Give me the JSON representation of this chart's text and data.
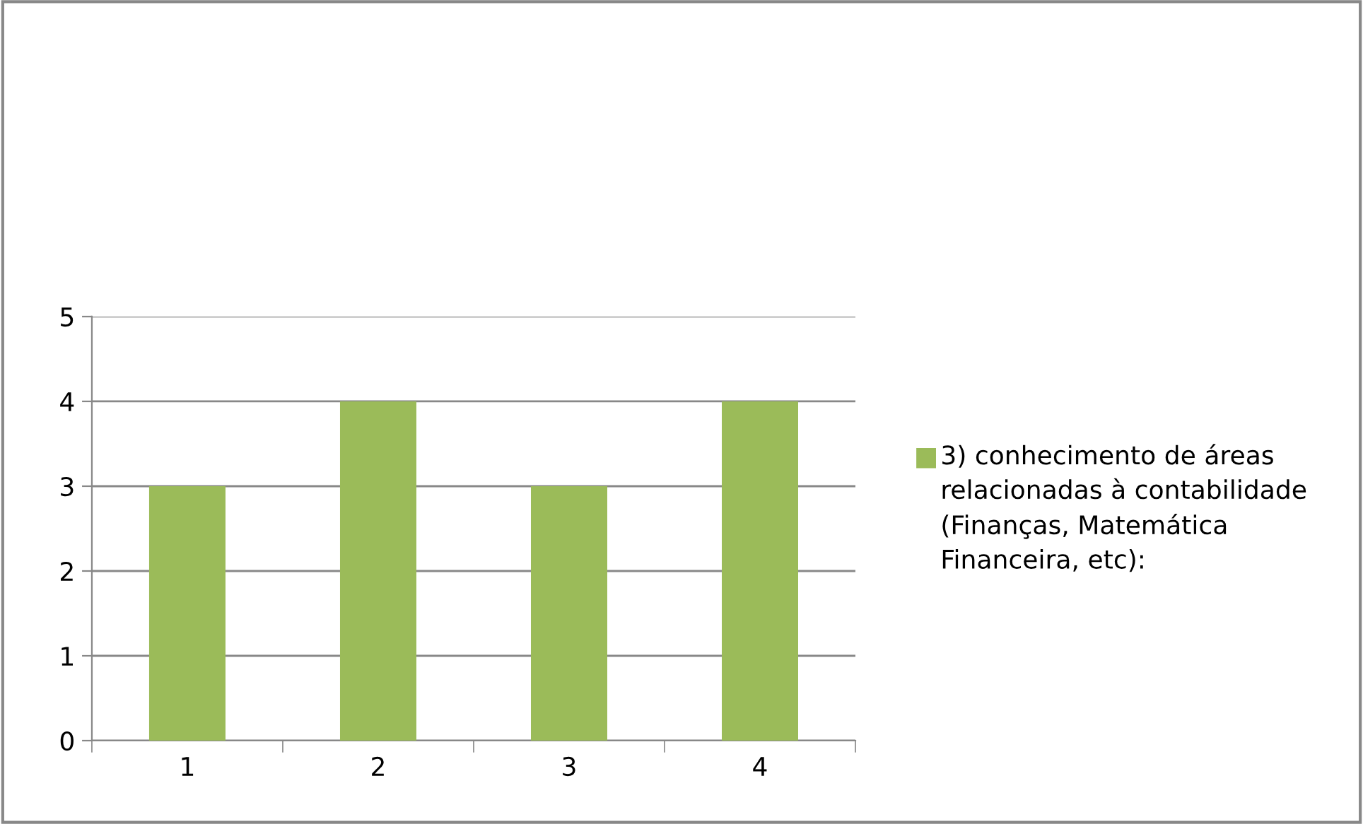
{
  "chart_data": {
    "type": "bar",
    "categories": [
      "1",
      "2",
      "3",
      "4"
    ],
    "series": [
      {
        "name": "3) conhecimento de áreas relacionadas à contabilidade (Finanças, Matemática Financeira, etc):",
        "color": "#9bbb59",
        "values": [
          3,
          4,
          3,
          4
        ]
      }
    ],
    "ylim": [
      0,
      5
    ],
    "yticks": [
      0,
      1,
      2,
      3,
      4,
      5
    ],
    "grid": "y",
    "legend": "right"
  }
}
